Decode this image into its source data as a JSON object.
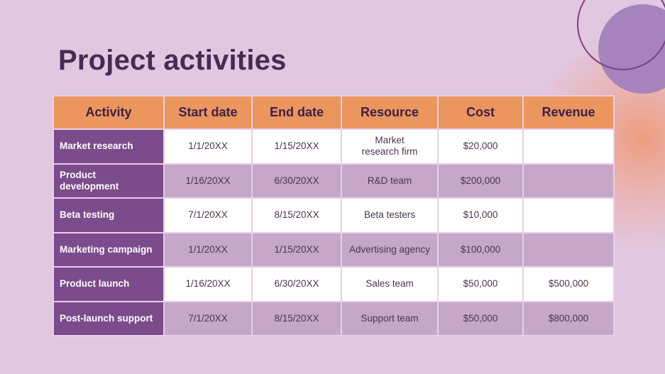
{
  "title": "Project activities",
  "columns": [
    "Activity",
    "Start date",
    "End date",
    "Resource",
    "Cost",
    "Revenue"
  ],
  "rows": [
    {
      "activity": "Market research",
      "start": "1/1/20XX",
      "end": "1/15/20XX",
      "resource": "Market research firm",
      "cost": "$20,000",
      "revenue": ""
    },
    {
      "activity": "Product development",
      "start": "1/16/20XX",
      "end": "6/30/20XX",
      "resource": "R&D team",
      "cost": "$200,000",
      "revenue": ""
    },
    {
      "activity": "Beta testing",
      "start": "7/1/20XX",
      "end": "8/15/20XX",
      "resource": "Beta testers",
      "cost": "$10,000",
      "revenue": ""
    },
    {
      "activity": "Marketing campaign",
      "start": "1/1/20XX",
      "end": "1/15/20XX",
      "resource": "Advertising agency",
      "cost": "$100,000",
      "revenue": ""
    },
    {
      "activity": "Product launch",
      "start": "1/16/20XX",
      "end": "6/30/20XX",
      "resource": "Sales team",
      "cost": "$50,000",
      "revenue": "$500,000"
    },
    {
      "activity": "Post-launch support",
      "start": "7/1/20XX",
      "end": "8/15/20XX",
      "resource": "Support team",
      "cost": "$50,000",
      "revenue": "$800,000"
    }
  ],
  "colors": {
    "background": "#e2c7e1",
    "header": "#eb955f",
    "first_column": "#7b4b8b",
    "row_alt": "#c6a7c9",
    "title": "#4a2a53",
    "circle": "#a683bd"
  }
}
